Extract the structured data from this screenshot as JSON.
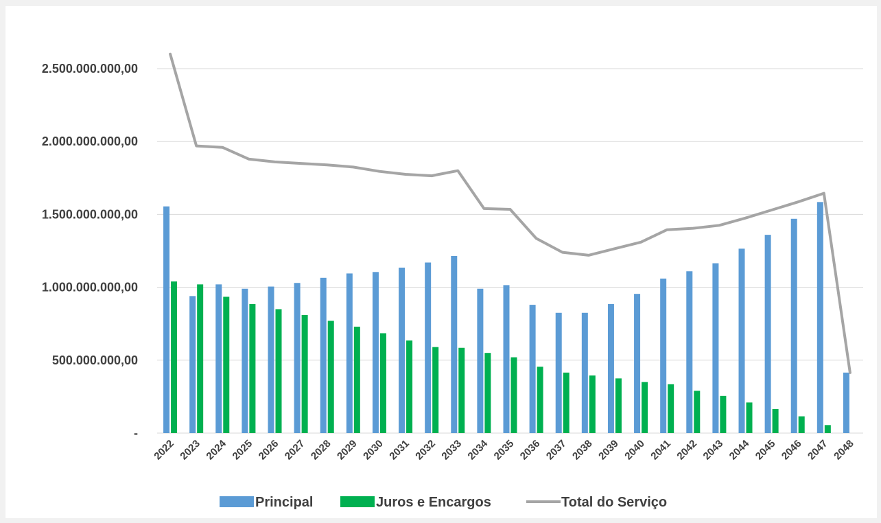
{
  "colors": {
    "principal": "#5b9bd5",
    "juros": "#00b050",
    "total": "#a5a5a5",
    "grid": "#d9d9d9",
    "text": "#404040"
  },
  "chart_data": {
    "type": "bar",
    "categories": [
      "2022",
      "2023",
      "2024",
      "2025",
      "2026",
      "2027",
      "2028",
      "2029",
      "2030",
      "2031",
      "2032",
      "2033",
      "2034",
      "2035",
      "2036",
      "2037",
      "2038",
      "2039",
      "2040",
      "2041",
      "2042",
      "2043",
      "2044",
      "2045",
      "2046",
      "2047",
      "2048"
    ],
    "series": [
      {
        "name": "Principal",
        "type": "bar",
        "values": [
          1555000000,
          940000000,
          1020000000,
          990000000,
          1005000000,
          1030000000,
          1065000000,
          1095000000,
          1105000000,
          1135000000,
          1170000000,
          1215000000,
          990000000,
          1015000000,
          880000000,
          825000000,
          825000000,
          885000000,
          955000000,
          1060000000,
          1110000000,
          1165000000,
          1265000000,
          1360000000,
          1470000000,
          1585000000,
          415000000
        ]
      },
      {
        "name": "Juros e Encargos",
        "type": "bar",
        "values": [
          1040000000,
          1020000000,
          935000000,
          885000000,
          850000000,
          810000000,
          770000000,
          730000000,
          685000000,
          635000000,
          590000000,
          585000000,
          550000000,
          520000000,
          455000000,
          415000000,
          395000000,
          375000000,
          350000000,
          335000000,
          290000000,
          255000000,
          210000000,
          165000000,
          115000000,
          55000000,
          0
        ]
      },
      {
        "name": "Total do Serviço",
        "type": "line",
        "values": [
          2600000000,
          1970000000,
          1960000000,
          1880000000,
          1860000000,
          1850000000,
          1840000000,
          1825000000,
          1795000000,
          1775000000,
          1765000000,
          1800000000,
          1540000000,
          1535000000,
          1335000000,
          1240000000,
          1220000000,
          1265000000,
          1310000000,
          1395000000,
          1405000000,
          1425000000,
          1475000000,
          1530000000,
          1585000000,
          1645000000,
          415000000
        ]
      }
    ],
    "yticks": [
      "-",
      "500.000.000,00",
      "1.000.000.000,00",
      "1.500.000.000,00",
      "2.000.000.000,00",
      "2.500.000.000,00"
    ],
    "ylim": [
      0,
      2750000000
    ],
    "grid": true,
    "legend_position": "bottom"
  }
}
